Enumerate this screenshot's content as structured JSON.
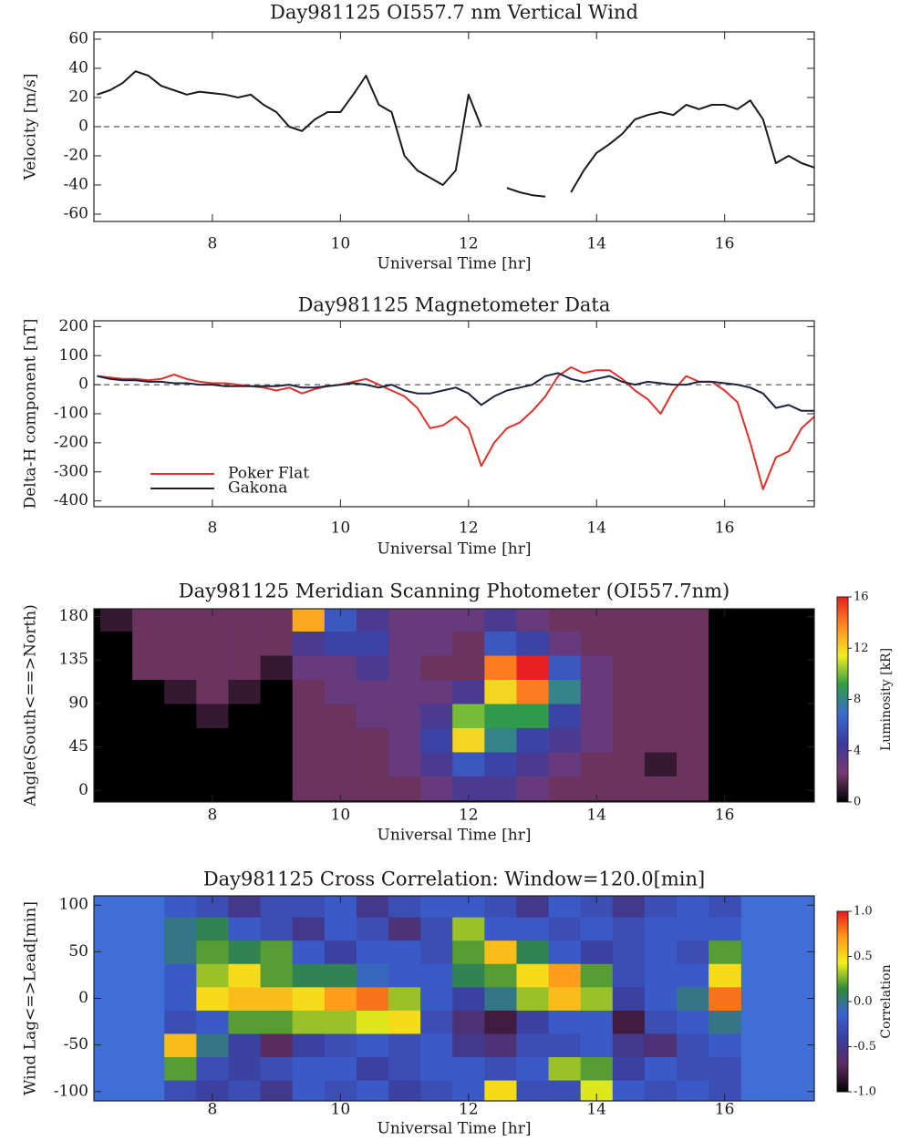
{
  "chart_data": [
    {
      "type": "line",
      "title": "Day981125 OI557.7 nm Vertical Wind",
      "x_label": "Universal Time [hr]",
      "y_label": "Velocity [m/s]",
      "xlim": [
        6.15,
        17.4
      ],
      "xticks": [
        8,
        10,
        12,
        14,
        16
      ],
      "ylim": [
        -65,
        65
      ],
      "yticks": [
        -60,
        -40,
        -20,
        0,
        20,
        40,
        60
      ],
      "x": [
        6.2,
        6.4,
        6.6,
        6.8,
        7.0,
        7.2,
        7.4,
        7.6,
        7.8,
        8.0,
        8.2,
        8.4,
        8.6,
        8.8,
        9.0,
        9.2,
        9.4,
        9.6,
        9.8,
        10.0,
        10.2,
        10.4,
        10.6,
        10.8,
        11.0,
        11.2,
        11.4,
        11.6,
        11.8,
        12.0,
        12.2,
        12.4,
        12.6,
        12.8,
        13.0,
        13.2,
        13.4,
        13.6,
        13.8,
        14.0,
        14.2,
        14.4,
        14.6,
        14.8,
        15.0,
        15.2,
        15.4,
        15.6,
        15.8,
        16.0,
        16.2,
        16.4,
        16.6,
        16.8,
        17.0,
        17.2,
        17.4
      ],
      "values": [
        22,
        25,
        30,
        38,
        35,
        28,
        25,
        22,
        24,
        23,
        22,
        20,
        22,
        15,
        10,
        0,
        -3,
        5,
        10,
        10,
        22,
        35,
        15,
        10,
        -20,
        -30,
        -35,
        -40,
        -30,
        22,
        0,
        null,
        -42,
        -45,
        -47,
        -48,
        null,
        -45,
        -30,
        -18,
        -12,
        -5,
        5,
        8,
        10,
        8,
        15,
        12,
        15,
        15,
        12,
        18,
        5,
        -25,
        -20,
        -25,
        -28
      ],
      "color": "#1a1a1a"
    },
    {
      "type": "line",
      "title": "Day981125 Magnetometer Data",
      "x_label": "Universal Time [hr]",
      "y_label": "Delta-H component [nT]",
      "xlim": [
        6.15,
        17.4
      ],
      "xticks": [
        8,
        10,
        12,
        14,
        16
      ],
      "ylim": [
        -420,
        220
      ],
      "yticks": [
        -400,
        -300,
        -200,
        -100,
        0,
        100,
        200
      ],
      "x": [
        6.2,
        6.4,
        6.6,
        6.8,
        7.0,
        7.2,
        7.4,
        7.6,
        7.8,
        8.0,
        8.2,
        8.4,
        8.6,
        8.8,
        9.0,
        9.2,
        9.4,
        9.6,
        9.8,
        10.0,
        10.2,
        10.4,
        10.6,
        10.8,
        11.0,
        11.2,
        11.4,
        11.6,
        11.8,
        12.0,
        12.2,
        12.4,
        12.6,
        12.8,
        13.0,
        13.2,
        13.4,
        13.6,
        13.8,
        14.0,
        14.2,
        14.4,
        14.6,
        14.8,
        15.0,
        15.2,
        15.4,
        15.6,
        15.8,
        16.0,
        16.2,
        16.4,
        16.6,
        16.8,
        17.0,
        17.2,
        17.4
      ],
      "series": [
        {
          "name": "Poker Flat",
          "color": "#e0302a",
          "values": [
            30,
            25,
            20,
            20,
            15,
            20,
            35,
            20,
            10,
            5,
            5,
            0,
            -5,
            -10,
            -20,
            -10,
            -30,
            -15,
            -5,
            0,
            10,
            20,
            0,
            -20,
            -40,
            -80,
            -150,
            -140,
            -110,
            -150,
            -280,
            -200,
            -150,
            -130,
            -90,
            -40,
            30,
            60,
            40,
            50,
            50,
            20,
            -20,
            -50,
            -100,
            -20,
            30,
            10,
            10,
            -20,
            -60,
            -200,
            -360,
            -250,
            -230,
            -150,
            -110
          ]
        },
        {
          "name": "Gakona",
          "color": "#1c2140",
          "values": [
            30,
            20,
            15,
            15,
            10,
            10,
            5,
            5,
            0,
            0,
            -5,
            -5,
            -5,
            -5,
            -5,
            0,
            -10,
            -10,
            -5,
            0,
            5,
            0,
            -10,
            0,
            -20,
            -30,
            -30,
            -20,
            -10,
            -30,
            -70,
            -40,
            -20,
            -10,
            0,
            30,
            40,
            20,
            10,
            20,
            30,
            10,
            0,
            10,
            5,
            0,
            0,
            10,
            10,
            5,
            0,
            -10,
            -30,
            -80,
            -70,
            -90,
            -90
          ]
        }
      ]
    },
    {
      "type": "heatmap",
      "title": "Day981125 Meridian Scanning Photometer (OI557.7nm)",
      "x_label": "Universal Time [hr]",
      "y_label": "Angle(South<==>North)",
      "colorbar_label": "Luminosity [kR]",
      "xlim": [
        6.15,
        17.4
      ],
      "xticks": [
        8,
        10,
        12,
        14,
        16
      ],
      "ylim": [
        -12,
        188
      ],
      "yticks": [
        0,
        45,
        90,
        135,
        180
      ],
      "clim": [
        0,
        16
      ],
      "cticks": [
        0,
        4,
        8,
        12,
        16
      ],
      "nodata_color": "#000000",
      "colormap": [
        "#000000",
        "#7a3a6e",
        "#3b3a9e",
        "#3a6ad0",
        "#2f9e44",
        "#f0ee22",
        "#ff8a20",
        "#e82020"
      ],
      "x": [
        6.5,
        7.0,
        7.5,
        8.0,
        8.5,
        9.0,
        9.5,
        10.0,
        10.5,
        11.0,
        11.5,
        12.0,
        12.5,
        13.0,
        13.5,
        14.0,
        14.5,
        15.0,
        15.5,
        16.0,
        16.5,
        17.0
      ],
      "y": [
        2.5,
        27.5,
        52.5,
        77.5,
        102.5,
        127.5,
        152.5,
        177.5
      ],
      "z": [
        [
          0,
          0,
          0,
          0,
          0,
          0,
          2,
          2,
          2,
          2,
          3,
          4,
          4,
          3,
          2,
          2,
          2,
          2,
          2,
          0,
          0,
          0
        ],
        [
          0,
          0,
          0,
          0,
          0,
          0,
          2,
          2,
          2,
          3,
          4,
          6,
          5,
          4,
          3,
          2,
          2,
          1,
          2,
          0,
          0,
          0
        ],
        [
          0,
          0,
          0,
          0,
          0,
          0,
          2,
          2,
          2,
          3,
          5,
          12,
          8,
          5,
          4,
          3,
          2,
          2,
          2,
          0,
          0,
          0
        ],
        [
          0,
          0,
          0,
          1,
          0,
          0,
          2,
          2,
          3,
          3,
          4,
          10,
          9,
          9,
          5,
          3,
          2,
          2,
          2,
          0,
          0,
          0
        ],
        [
          0,
          0,
          1,
          2,
          1,
          0,
          2,
          3,
          3,
          3,
          3,
          4,
          12,
          14,
          8,
          3,
          2,
          2,
          2,
          0,
          0,
          0
        ],
        [
          0,
          2,
          2,
          2,
          2,
          1,
          3,
          3,
          4,
          3,
          2,
          2,
          14,
          16,
          6,
          3,
          2,
          2,
          2,
          0,
          0,
          0
        ],
        [
          0,
          2,
          2,
          2,
          2,
          2,
          4,
          5,
          5,
          3,
          3,
          2,
          6,
          5,
          3,
          2,
          2,
          2,
          2,
          0,
          0,
          0
        ],
        [
          1,
          2,
          2,
          2,
          2,
          2,
          13,
          6,
          4,
          3,
          3,
          3,
          4,
          3,
          2,
          2,
          2,
          2,
          2,
          0,
          0,
          0
        ]
      ]
    },
    {
      "type": "heatmap",
      "title": "Day981125 Cross Correlation: Window=120.0[min]",
      "x_label": "Universal Time [hr]",
      "y_label": "Wind Lag<=>Lead[min]",
      "colorbar_label": "Correlation",
      "xlim": [
        6.15,
        17.4
      ],
      "xticks": [
        8,
        10,
        12,
        14,
        16
      ],
      "ylim": [
        -110,
        110
      ],
      "yticks": [
        -100,
        -50,
        0,
        50,
        100
      ],
      "clim": [
        -1,
        1
      ],
      "cticks": [
        {
          "value": -1,
          "label": "-1.0"
        },
        -0.5,
        {
          "value": 0,
          "label": "0.0"
        },
        0.5,
        {
          "value": 1,
          "label": "1.0"
        }
      ],
      "nodata_color": "#3f6fd6",
      "colormap": [
        "#000000",
        "#5c2a5c",
        "#3a3d9c",
        "#3a62d2",
        "#2f8a3a",
        "#f2f01a",
        "#ff9a1a",
        "#e81a1a"
      ],
      "x": [
        7.5,
        8.0,
        8.5,
        9.0,
        9.5,
        10.0,
        10.5,
        11.0,
        11.5,
        12.0,
        12.5,
        13.0,
        13.5,
        14.0,
        14.5,
        15.0,
        15.5,
        16.0
      ],
      "y": [
        -100,
        -75,
        -50,
        -25,
        0,
        25,
        50,
        75,
        100
      ],
      "z": [
        [
          -0.3,
          -0.4,
          -0.3,
          -0.5,
          -0.2,
          -0.3,
          -0.2,
          -0.4,
          -0.3,
          -0.2,
          0.5,
          -0.3,
          -0.3,
          0.4,
          -0.2,
          -0.3,
          -0.2,
          -0.3
        ],
        [
          0.2,
          -0.3,
          -0.4,
          -0.3,
          -0.2,
          -0.2,
          -0.4,
          -0.3,
          -0.2,
          -0.2,
          -0.3,
          -0.2,
          0.3,
          0.2,
          -0.4,
          -0.2,
          -0.3,
          -0.3
        ],
        [
          0.6,
          0.0,
          -0.4,
          -0.7,
          -0.4,
          -0.3,
          -0.2,
          -0.3,
          -0.2,
          -0.5,
          -0.6,
          -0.3,
          -0.3,
          -0.2,
          -0.5,
          -0.6,
          -0.3,
          -0.2
        ],
        [
          -0.3,
          -0.2,
          0.2,
          0.2,
          0.3,
          0.3,
          0.4,
          0.5,
          -0.3,
          -0.6,
          -0.8,
          -0.4,
          -0.2,
          -0.2,
          -0.8,
          -0.3,
          -0.2,
          0.0
        ],
        [
          -0.2,
          0.5,
          0.6,
          0.6,
          0.5,
          0.7,
          0.8,
          0.3,
          -0.2,
          -0.4,
          0.0,
          0.3,
          0.6,
          0.3,
          -0.4,
          -0.2,
          0.0,
          0.8
        ],
        [
          -0.2,
          0.3,
          0.5,
          0.2,
          0.1,
          0.1,
          -0.1,
          -0.2,
          -0.2,
          0.1,
          0.2,
          0.5,
          0.7,
          0.2,
          -0.3,
          -0.2,
          -0.2,
          0.5
        ],
        [
          0.0,
          0.2,
          0.1,
          0.2,
          -0.2,
          -0.4,
          -0.2,
          -0.2,
          -0.3,
          0.2,
          0.6,
          0.1,
          -0.2,
          -0.4,
          -0.3,
          -0.2,
          -0.3,
          0.2
        ],
        [
          0.0,
          0.1,
          -0.2,
          -0.3,
          -0.5,
          -0.2,
          -0.3,
          -0.6,
          -0.3,
          0.3,
          -0.2,
          -0.2,
          -0.3,
          -0.2,
          -0.3,
          -0.2,
          -0.2,
          -0.2
        ],
        [
          -0.2,
          -0.3,
          -0.5,
          -0.3,
          -0.3,
          -0.2,
          -0.5,
          -0.3,
          -0.2,
          -0.2,
          -0.3,
          -0.5,
          -0.2,
          -0.3,
          -0.5,
          -0.3,
          -0.2,
          -0.3
        ]
      ]
    }
  ]
}
